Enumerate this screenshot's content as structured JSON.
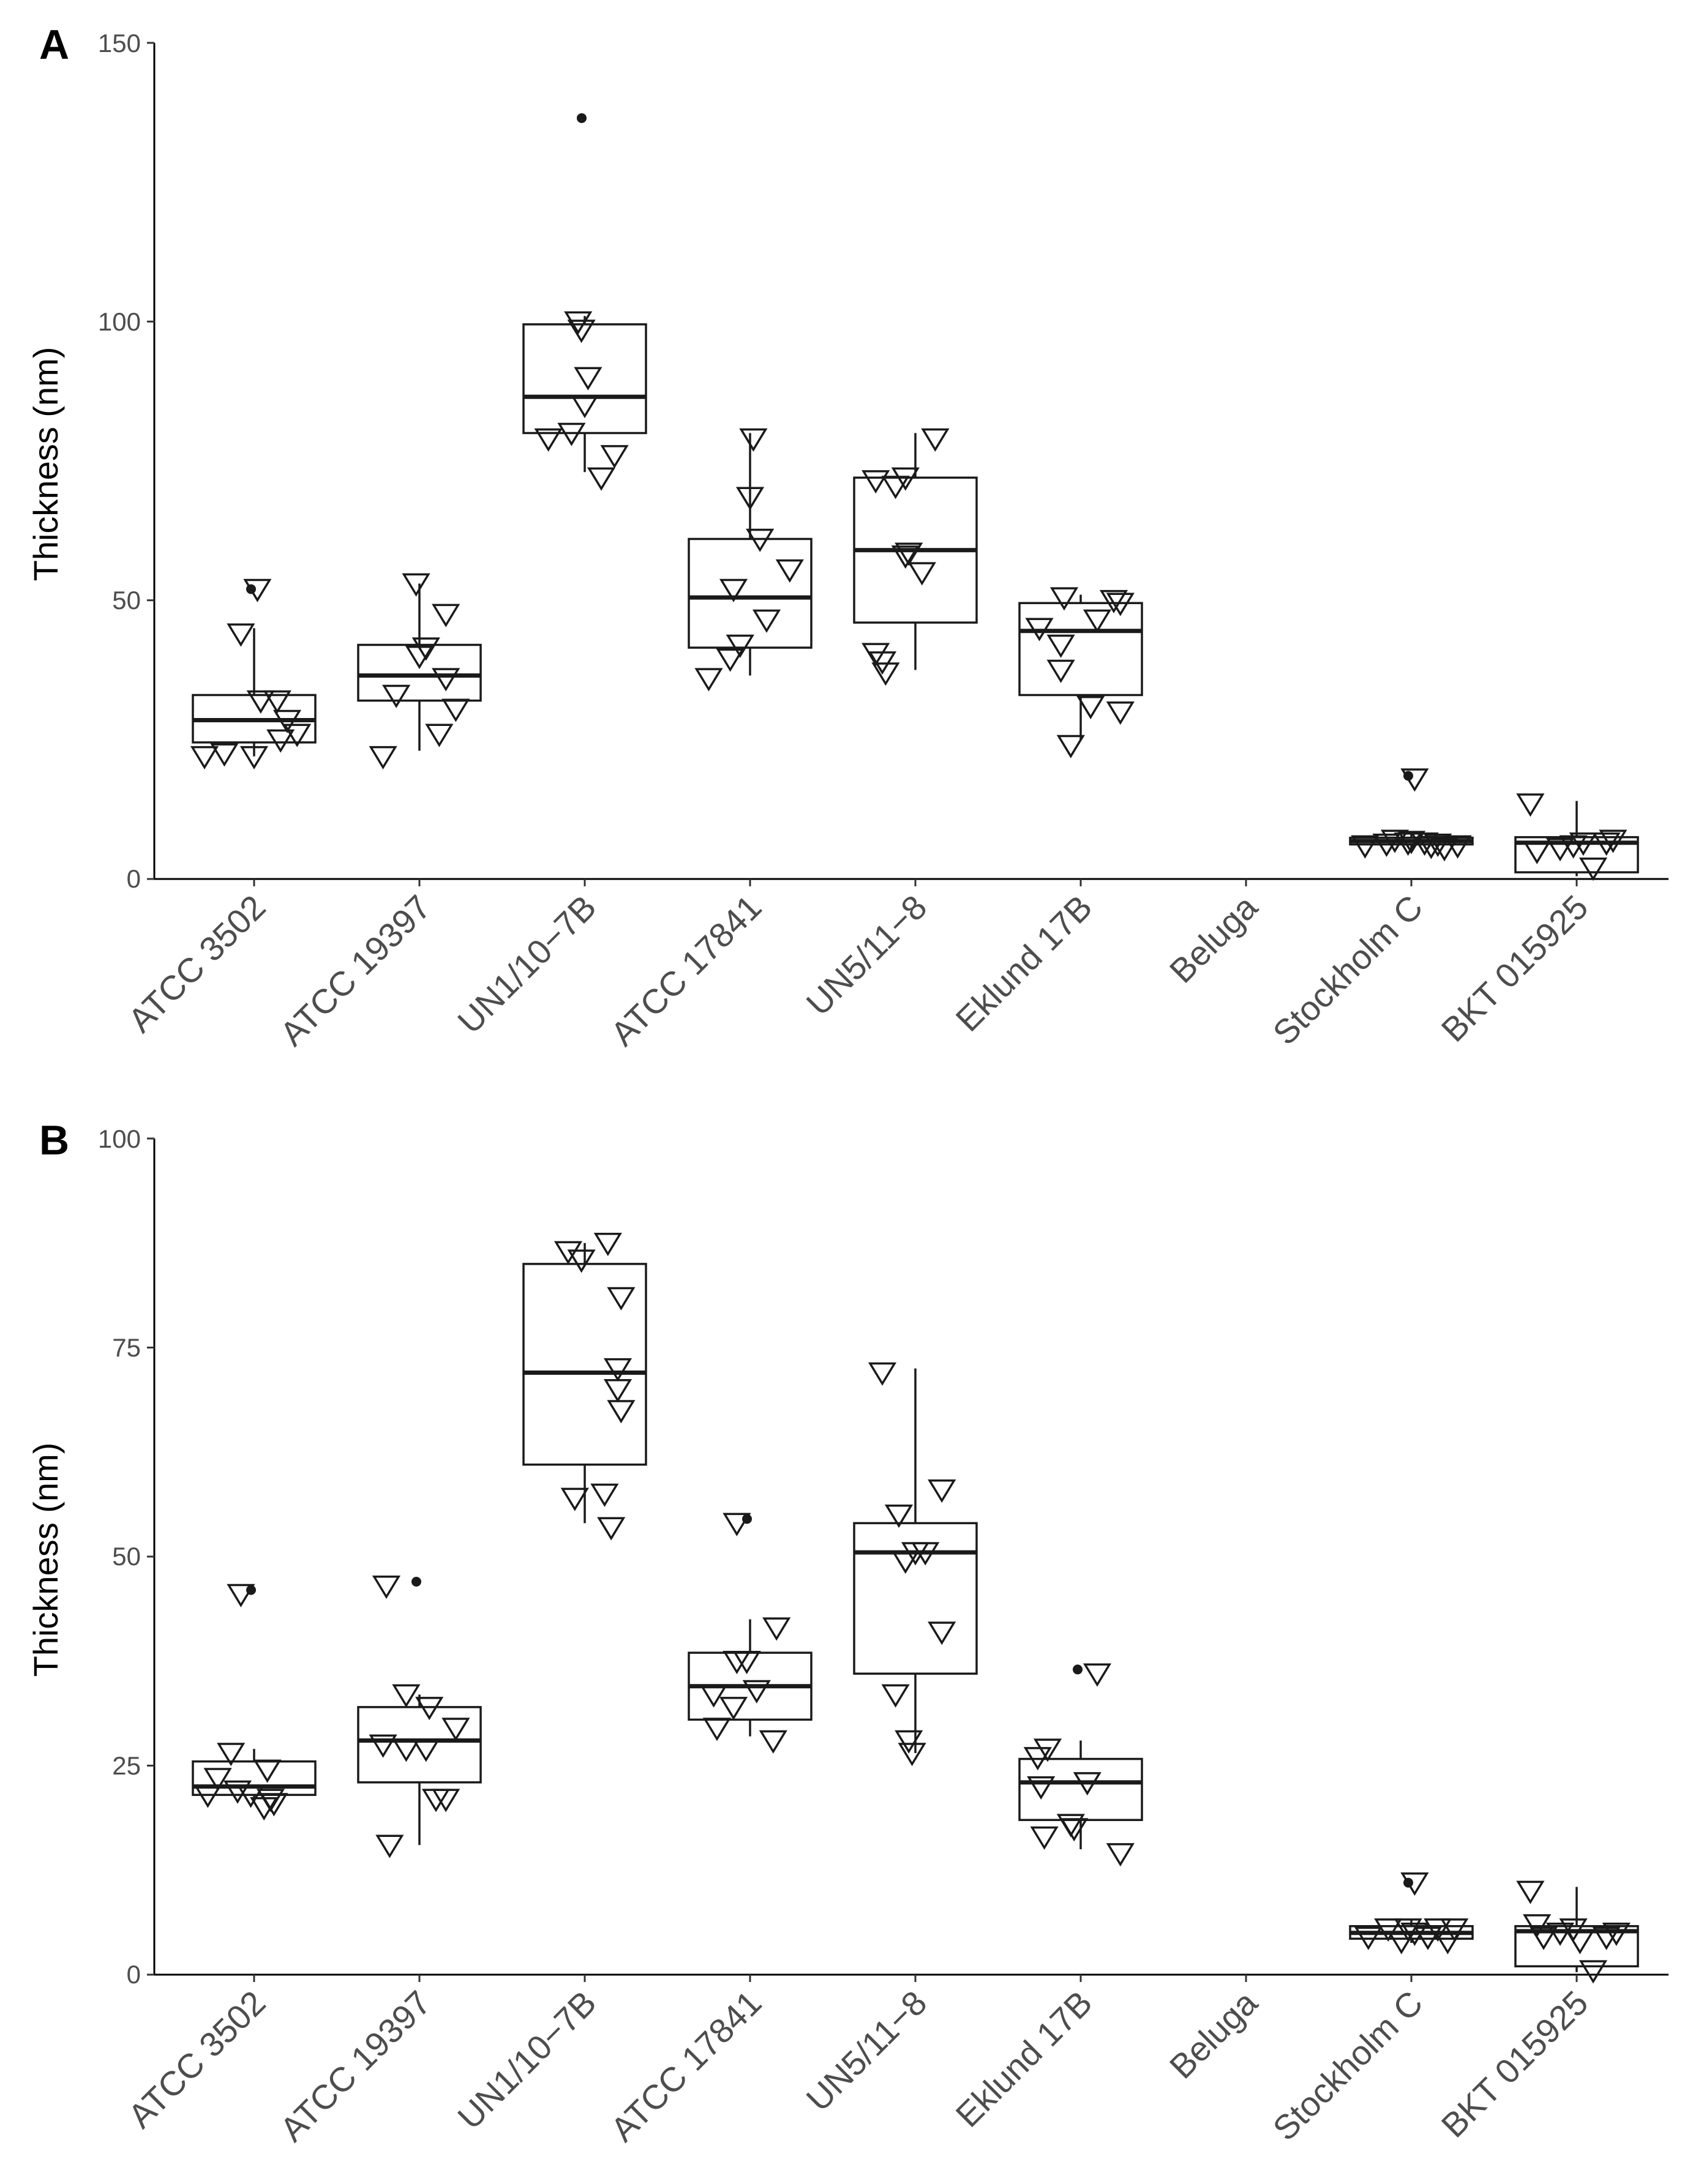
{
  "chart_data": [
    {
      "type": "boxplot",
      "panel": "A",
      "title": "",
      "xlabel": "",
      "ylabel": "Thickness (nm)",
      "ylim": [
        0,
        150
      ],
      "yticks": [
        0,
        50,
        100,
        150
      ],
      "grid": false,
      "categories": [
        "ATCC 3502",
        "ATCC 19397",
        "UN1/10−7B",
        "ATCC 17841",
        "UN5/11−8",
        "Eklund 17B",
        "Beluga",
        "Stockholm C",
        "BKT 015925"
      ],
      "boxes": [
        {
          "q1": 24.5,
          "median": 28.5,
          "q3": 33,
          "whisker_low": 22,
          "whisker_high": 45,
          "outliers": [
            52
          ]
        },
        {
          "q1": 32,
          "median": 36.5,
          "q3": 42,
          "whisker_low": 23,
          "whisker_high": 53,
          "outliers": []
        },
        {
          "q1": 80,
          "median": 86.5,
          "q3": 99.5,
          "whisker_low": 73,
          "whisker_high": 101,
          "outliers": [
            136.5
          ]
        },
        {
          "q1": 41.5,
          "median": 50.5,
          "q3": 61,
          "whisker_low": 36.5,
          "whisker_high": 80,
          "outliers": []
        },
        {
          "q1": 46,
          "median": 59,
          "q3": 72,
          "whisker_low": 37.5,
          "whisker_high": 80,
          "outliers": []
        },
        {
          "q1": 33,
          "median": 44.5,
          "q3": 49.5,
          "whisker_low": 25,
          "whisker_high": 51,
          "outliers": []
        },
        null,
        {
          "q1": 6.2,
          "median": 6.8,
          "q3": 7.4,
          "whisker_low": 5.5,
          "whisker_high": 8.5,
          "outliers": [
            18.5
          ]
        },
        {
          "q1": 1.2,
          "median": 6.5,
          "q3": 7.5,
          "whisker_low": 0.5,
          "whisker_high": 14,
          "outliers": []
        }
      ],
      "points": [
        [
          [
            -0.3,
            22
          ],
          [
            -0.18,
            22.5
          ],
          [
            0,
            22
          ],
          [
            -0.08,
            44
          ],
          [
            0.02,
            52
          ],
          [
            0.04,
            32
          ],
          [
            0.14,
            32
          ],
          [
            0.2,
            28.5
          ],
          [
            0.26,
            26
          ],
          [
            0.16,
            25
          ]
        ],
        [
          [
            -0.22,
            22
          ],
          [
            -0.14,
            33
          ],
          [
            -0.02,
            53
          ],
          [
            0,
            40
          ],
          [
            0.04,
            41.5
          ],
          [
            0.12,
            26
          ],
          [
            0.16,
            36
          ],
          [
            0.16,
            47.5
          ],
          [
            0.22,
            30.5
          ]
        ],
        [
          [
            -0.22,
            79
          ],
          [
            -0.08,
            80
          ],
          [
            -0.04,
            100
          ],
          [
            -0.02,
            98.5
          ],
          [
            0,
            85
          ],
          [
            0.02,
            90
          ],
          [
            0.1,
            72
          ],
          [
            0.18,
            76
          ]
        ],
        [
          [
            -0.25,
            36
          ],
          [
            -0.12,
            39.5
          ],
          [
            -0.1,
            52
          ],
          [
            -0.06,
            42
          ],
          [
            0,
            68.5
          ],
          [
            0.02,
            79
          ],
          [
            0.06,
            61
          ],
          [
            0.1,
            46.5
          ],
          [
            0.24,
            55.5
          ]
        ],
        [
          [
            -0.24,
            71.5
          ],
          [
            -0.24,
            40.5
          ],
          [
            -0.2,
            39
          ],
          [
            -0.18,
            37
          ],
          [
            -0.12,
            70.5
          ],
          [
            -0.06,
            72
          ],
          [
            -0.06,
            58
          ],
          [
            -0.04,
            58.5
          ],
          [
            0.04,
            55
          ],
          [
            0.12,
            79
          ]
        ],
        [
          [
            -0.25,
            45
          ],
          [
            -0.12,
            42
          ],
          [
            -0.1,
            50.5
          ],
          [
            -0.12,
            37.5
          ],
          [
            -0.06,
            24
          ],
          [
            0.06,
            31
          ],
          [
            0.1,
            46.5
          ],
          [
            0.2,
            50
          ],
          [
            0.24,
            49.5
          ],
          [
            0.24,
            30
          ]
        ],
        [],
        [
          [
            -0.28,
            6
          ],
          [
            -0.15,
            6.3
          ],
          [
            -0.1,
            7
          ],
          [
            -0.02,
            6.5
          ],
          [
            0,
            6.8
          ],
          [
            0.02,
            18
          ],
          [
            0.08,
            6.5
          ],
          [
            0.12,
            5.9
          ],
          [
            0.16,
            6.3
          ],
          [
            0.2,
            5.5
          ],
          [
            0.28,
            6
          ]
        ],
        [
          [
            -0.28,
            13.5
          ],
          [
            -0.24,
            5
          ],
          [
            -0.1,
            5.5
          ],
          [
            -0.02,
            6
          ],
          [
            0.04,
            6.5
          ],
          [
            0.1,
            2
          ],
          [
            0.18,
            6.5
          ],
          [
            0.22,
            7
          ]
        ]
      ]
    },
    {
      "type": "boxplot",
      "panel": "B",
      "title": "",
      "xlabel": "",
      "ylabel": "Thickness (nm)",
      "ylim": [
        0,
        100
      ],
      "yticks": [
        0,
        25,
        50,
        75,
        100
      ],
      "grid": false,
      "categories": [
        "ATCC 3502",
        "ATCC 19397",
        "UN1/10−7B",
        "ATCC 17841",
        "UN5/11−8",
        "Eklund 17B",
        "Beluga",
        "Stockholm C",
        "BKT 015925"
      ],
      "boxes": [
        {
          "q1": 21.5,
          "median": 22.5,
          "q3": 25.5,
          "whisker_low": 20.5,
          "whisker_high": 27,
          "outliers": [
            46
          ]
        },
        {
          "q1": 23,
          "median": 28,
          "q3": 32,
          "whisker_low": 15.5,
          "whisker_high": 33.5,
          "outliers": [
            47
          ]
        },
        {
          "q1": 61,
          "median": 72,
          "q3": 85,
          "whisker_low": 54,
          "whisker_high": 87.5,
          "outliers": []
        },
        {
          "q1": 30.5,
          "median": 34.5,
          "q3": 38.5,
          "whisker_low": 28.5,
          "whisker_high": 42.5,
          "outliers": [
            54.5
          ]
        },
        {
          "q1": 36,
          "median": 50.5,
          "q3": 54,
          "whisker_low": 26.5,
          "whisker_high": 72.5,
          "outliers": []
        },
        {
          "q1": 18.5,
          "median": 23,
          "q3": 25.8,
          "whisker_low": 15,
          "whisker_high": 28,
          "outliers": [
            36.5
          ]
        },
        null,
        {
          "q1": 4.3,
          "median": 5,
          "q3": 5.8,
          "whisker_low": 3.8,
          "whisker_high": 6.5,
          "outliers": [
            11
          ]
        },
        {
          "q1": 1,
          "median": 5.2,
          "q3": 5.8,
          "whisker_low": 0.3,
          "whisker_high": 10.5,
          "outliers": []
        }
      ],
      "points": [
        [
          [
            -0.28,
            21.5
          ],
          [
            -0.22,
            23.5
          ],
          [
            -0.14,
            26.5
          ],
          [
            -0.1,
            22
          ],
          [
            -0.08,
            45.5
          ],
          [
            -0.02,
            21.5
          ],
          [
            0.06,
            20
          ],
          [
            0.08,
            24.5
          ],
          [
            0.1,
            21
          ],
          [
            0.12,
            20.5
          ]
        ],
        [
          [
            -0.18,
            15.5
          ],
          [
            -0.2,
            46.5
          ],
          [
            -0.22,
            27.5
          ],
          [
            -0.08,
            27
          ],
          [
            -0.08,
            33.5
          ],
          [
            0.04,
            27
          ],
          [
            0.06,
            32
          ],
          [
            0.1,
            21
          ],
          [
            0.16,
            21
          ],
          [
            0.22,
            29.5
          ]
        ],
        [
          [
            -0.1,
            86.5
          ],
          [
            -0.02,
            85.5
          ],
          [
            0.14,
            87.5
          ],
          [
            0.22,
            81
          ],
          [
            0.2,
            72.5
          ],
          [
            0.2,
            70
          ],
          [
            0.22,
            67.5
          ],
          [
            -0.06,
            57
          ],
          [
            0.12,
            57.5
          ],
          [
            0.16,
            53.5
          ]
        ],
        [
          [
            -0.2,
            29.5
          ],
          [
            -0.22,
            33.5
          ],
          [
            -0.1,
            32
          ],
          [
            -0.08,
            54
          ],
          [
            -0.08,
            37.5
          ],
          [
            -0.02,
            37.5
          ],
          [
            0.04,
            34
          ],
          [
            0.14,
            28
          ],
          [
            0.16,
            41.5
          ]
        ],
        [
          [
            -0.12,
            33.5
          ],
          [
            -0.1,
            55
          ],
          [
            -0.2,
            72
          ],
          [
            -0.06,
            49.5
          ],
          [
            0,
            50.5
          ],
          [
            0.06,
            50.5
          ],
          [
            0.16,
            58
          ],
          [
            0.16,
            41
          ],
          [
            -0.04,
            28
          ],
          [
            -0.02,
            26.5
          ]
        ],
        [
          [
            -0.26,
            26
          ],
          [
            -0.24,
            22.5
          ],
          [
            -0.2,
            27
          ],
          [
            -0.22,
            16.5
          ],
          [
            -0.06,
            18
          ],
          [
            -0.04,
            17.5
          ],
          [
            0.04,
            23
          ],
          [
            0.1,
            36
          ],
          [
            0.24,
            14.5
          ]
        ],
        [],
        [
          [
            -0.26,
            4.5
          ],
          [
            -0.14,
            5.5
          ],
          [
            -0.06,
            4
          ],
          [
            -0.02,
            5.5
          ],
          [
            0.02,
            11
          ],
          [
            0.02,
            5
          ],
          [
            0.1,
            4.5
          ],
          [
            0.16,
            5.5
          ],
          [
            0.22,
            4
          ],
          [
            0.26,
            5.5
          ]
        ],
        [
          [
            -0.28,
            10
          ],
          [
            -0.24,
            6
          ],
          [
            -0.2,
            4.5
          ],
          [
            -0.1,
            5
          ],
          [
            -0.02,
            5.5
          ],
          [
            0.02,
            4
          ],
          [
            0.1,
            0.5
          ],
          [
            0.18,
            4.5
          ],
          [
            0.24,
            5
          ]
        ]
      ]
    }
  ],
  "panel_labels": {
    "a": "A",
    "b": "B"
  },
  "tick_labels": {
    "a": [
      "0",
      "50",
      "100",
      "150"
    ],
    "b": [
      "0",
      "25",
      "50",
      "75",
      "100"
    ]
  }
}
